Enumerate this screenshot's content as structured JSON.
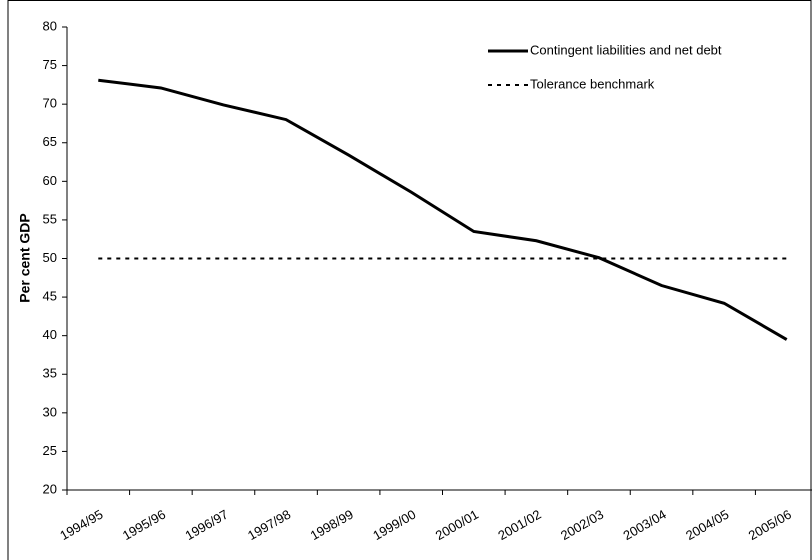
{
  "chart_data": {
    "type": "line",
    "y_label": "Per cent GDP",
    "categories": [
      "1994/95",
      "1995/96",
      "1996/97",
      "1997/98",
      "1998/99",
      "1999/00",
      "2000/01",
      "2001/02",
      "2002/03",
      "2003/04",
      "2004/05",
      "2005/06"
    ],
    "series": [
      {
        "name": "Contingent liabilities and net debt",
        "color": "#000000",
        "style": "solid",
        "values": [
          73.1,
          72.1,
          69.9,
          68.0,
          63.4,
          58.6,
          53.5,
          52.3,
          50.1,
          46.5,
          44.2,
          39.5
        ]
      },
      {
        "name": "Tolerance benchmark",
        "color": "#000000",
        "style": "dotted",
        "values": [
          50,
          50,
          50,
          50,
          50,
          50,
          50,
          50,
          50,
          50,
          50,
          50
        ]
      }
    ],
    "ylim": [
      20,
      80
    ],
    "yticks": [
      20,
      25,
      30,
      35,
      40,
      45,
      50,
      55,
      60,
      65,
      70,
      75,
      80
    ],
    "grid": false,
    "legend": "top-right"
  }
}
